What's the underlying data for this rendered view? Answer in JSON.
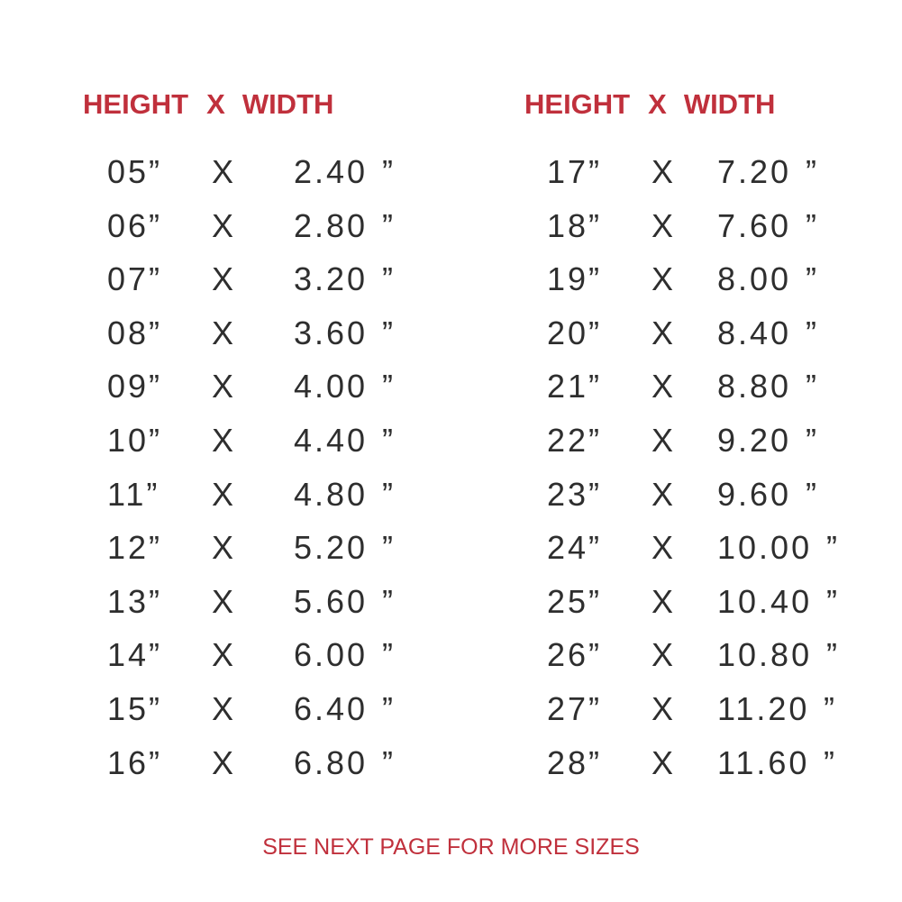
{
  "header": {
    "height": "HEIGHT",
    "x": "X",
    "width": "WIDTH"
  },
  "inch_mark": "”",
  "colors": {
    "accent": "#c0303c",
    "text": "#2e2e2e"
  },
  "columns": [
    {
      "rows": [
        {
          "height": "05”",
          "width": "2.40"
        },
        {
          "height": "06”",
          "width": "2.80"
        },
        {
          "height": "07”",
          "width": "3.20"
        },
        {
          "height": "08”",
          "width": "3.60"
        },
        {
          "height": "09”",
          "width": "4.00"
        },
        {
          "height": "10”",
          "width": "4.40"
        },
        {
          "height": "11”",
          "width": "4.80"
        },
        {
          "height": "12”",
          "width": "5.20"
        },
        {
          "height": "13”",
          "width": "5.60"
        },
        {
          "height": "14”",
          "width": "6.00"
        },
        {
          "height": "15”",
          "width": "6.40"
        },
        {
          "height": "16”",
          "width": "6.80"
        }
      ]
    },
    {
      "rows": [
        {
          "height": "17”",
          "width": "7.20"
        },
        {
          "height": "18”",
          "width": "7.60"
        },
        {
          "height": "19”",
          "width": "8.00"
        },
        {
          "height": "20”",
          "width": "8.40"
        },
        {
          "height": "21”",
          "width": "8.80"
        },
        {
          "height": "22”",
          "width": "9.20"
        },
        {
          "height": "23”",
          "width": "9.60"
        },
        {
          "height": "24”",
          "width": "10.00"
        },
        {
          "height": "25”",
          "width": "10.40"
        },
        {
          "height": "26”",
          "width": "10.80"
        },
        {
          "height": "27”",
          "width": "11.20"
        },
        {
          "height": "28”",
          "width": "11.60"
        }
      ]
    }
  ],
  "footer": "SEE NEXT PAGE FOR MORE SIZES"
}
